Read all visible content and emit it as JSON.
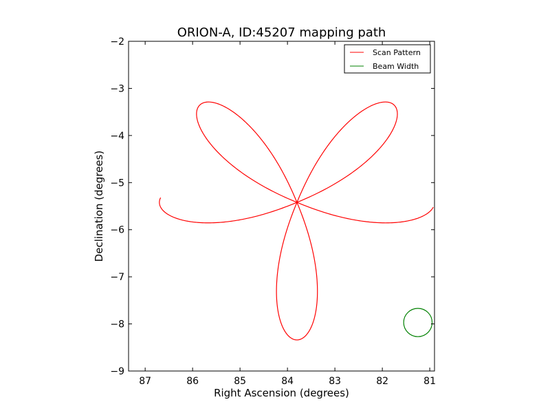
{
  "chart_data": {
    "type": "line",
    "title": "ORION-A, ID:45207 mapping path",
    "xlabel": "Right Ascension (degrees)",
    "ylabel": "Declination (degrees)",
    "xlim": [
      87.35,
      80.9
    ],
    "ylim": [
      -9,
      -2
    ],
    "x_inverted": true,
    "grid": false,
    "legend_position": "upper right",
    "xticks": [
      87,
      86,
      85,
      84,
      83,
      82,
      81
    ],
    "xtick_labels": [
      "87",
      "86",
      "85",
      "84",
      "83",
      "82",
      "81"
    ],
    "yticks": [
      -2,
      -3,
      -4,
      -5,
      -6,
      -7,
      -8,
      -9
    ],
    "ytick_labels": [
      "−2",
      "−3",
      "−4",
      "−5",
      "−6",
      "−7",
      "−8",
      "−9"
    ],
    "series": [
      {
        "name": "Scan Pattern",
        "color": "#ff0000",
        "shape": "rose curve, 8 petals",
        "center": [
          83.8,
          -5.42
        ],
        "petal_length_ra": 2.9,
        "petal_length_dec": 2.92,
        "petal_width": 0.41,
        "path_start": [
          86.75,
          -5.47
        ]
      },
      {
        "name": "Beam Width",
        "color": "#008000",
        "shape": "circle",
        "center": [
          81.25,
          -7.97
        ],
        "radius": 0.3
      }
    ]
  }
}
